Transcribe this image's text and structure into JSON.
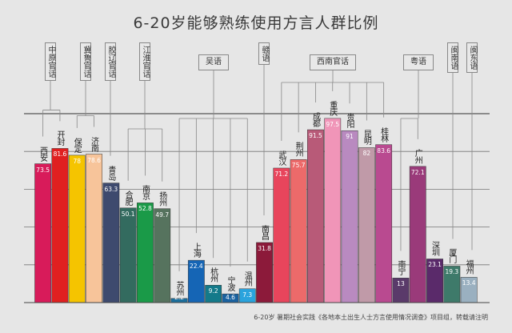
{
  "chart_data": {
    "type": "bar",
    "title": "6-20岁能够熟练使用方言人群比例",
    "ylim": [
      0,
      100
    ],
    "grid": true,
    "categories": [
      "西安",
      "开封",
      "保定",
      "济南",
      "青岛",
      "合肥",
      "南京",
      "扬州",
      "苏州",
      "上海",
      "杭州",
      "宁波",
      "温州",
      "南昌",
      "武汉",
      "荆州",
      "成都",
      "重庆",
      "贵阳",
      "昆明",
      "桂林",
      "南宁",
      "广州",
      "深圳",
      "厦门",
      "福州"
    ],
    "values": [
      73.5,
      81.6,
      78,
      78.6,
      63.3,
      50.1,
      52.8,
      49.7,
      2.2,
      22.4,
      9.2,
      4.6,
      7.3,
      31.8,
      71.2,
      75.7,
      91.5,
      97.5,
      91,
      82,
      83.6,
      13,
      72.1,
      23.1,
      19.3,
      13.4
    ],
    "value_labels": [
      "73.5",
      "81.6",
      "78",
      "78.6",
      "63.3",
      "50.1",
      "52.8",
      "49.7",
      "2.2",
      "22.4",
      "9.2",
      "4.6",
      "7.3",
      "31.8",
      "71.2",
      "75.7",
      "91.5",
      "97.5",
      "91",
      "82",
      "83.6",
      "13",
      "72.1",
      "23.1",
      "19.3",
      "13.4"
    ],
    "colors": [
      "#d81b5a",
      "#e02020",
      "#f5c400",
      "#f7c49a",
      "#3e4a6e",
      "#336b5f",
      "#1a9a48",
      "#56735e",
      "#1c6f9c",
      "#1565b5",
      "#137a8a",
      "#1a62a0",
      "#2aa3dd",
      "#8c1a3a",
      "#e8455c",
      "#ec6a6a",
      "#b85a78",
      "#f095b8",
      "#b98ac0",
      "#c09aa8",
      "#b94a90",
      "#5a3a6a",
      "#9a3a7a",
      "#5a2a6a",
      "#3e7a6a",
      "#9ab0c0"
    ],
    "groups": [
      {
        "name": "中原官话",
        "members": [
          0,
          1
        ]
      },
      {
        "name": "冀鲁官话",
        "members": [
          2,
          3
        ]
      },
      {
        "name": "胶辽官话",
        "members": [
          4
        ]
      },
      {
        "name": "江淮官话",
        "members": [
          5,
          6,
          7
        ]
      },
      {
        "name": "吴语",
        "members": [
          8,
          9,
          10,
          11,
          12
        ]
      },
      {
        "name": "赣语",
        "members": [
          13
        ]
      },
      {
        "name": "西南官话",
        "members": [
          14,
          15,
          16,
          17,
          18,
          19,
          20
        ]
      },
      {
        "name": "粤语",
        "members": [
          21,
          22
        ]
      },
      {
        "name": "闽南语",
        "members": [
          24
        ]
      },
      {
        "name": "闽东语",
        "members": [
          25
        ]
      }
    ]
  },
  "footer": "6-20岁 暑期社会实践《各地本土出生人士方言使用情况调查》项目组，转载请注明"
}
